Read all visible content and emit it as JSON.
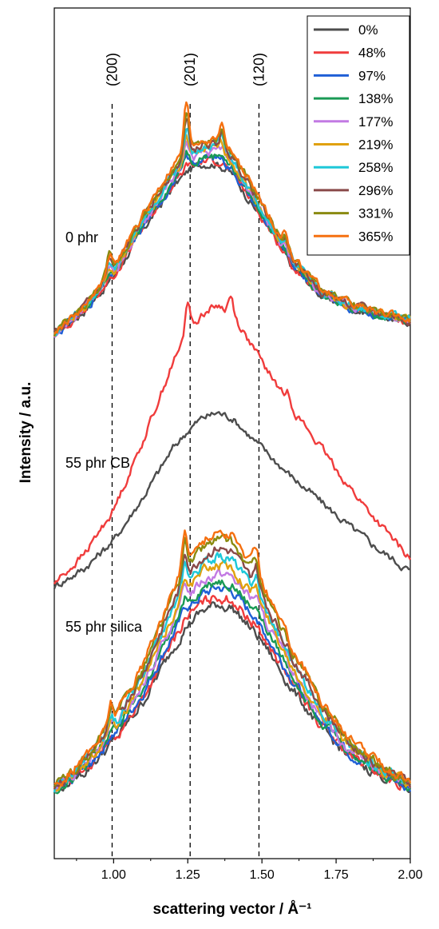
{
  "chart_data": {
    "type": "line",
    "xlabel": "scattering vector / Å⁻¹",
    "ylabel": "Intensity / a.u.",
    "xlim": [
      0.8,
      2.0
    ],
    "xticks": [
      {
        "value": 1.0,
        "label": "1.00"
      },
      {
        "value": 1.25,
        "label": "1.25"
      },
      {
        "value": 1.5,
        "label": "1.50"
      },
      {
        "value": 1.75,
        "label": "1.75"
      },
      {
        "value": 2.0,
        "label": "2.00"
      }
    ],
    "y_ticks_shown": false,
    "grid": false,
    "legend_position": "top-right",
    "reference_lines": [
      {
        "label": "(200)",
        "x": 0.995
      },
      {
        "label": "(201)",
        "x": 1.258
      },
      {
        "label": "(120)",
        "x": 1.49
      }
    ],
    "legend": [
      {
        "name": "0%",
        "color": "#4d4d4d"
      },
      {
        "name": "48%",
        "color": "#f03c3c"
      },
      {
        "name": "97%",
        "color": "#1f5fd6"
      },
      {
        "name": "138%",
        "color": "#1a9a55"
      },
      {
        "name": "177%",
        "color": "#c27ae3"
      },
      {
        "name": "219%",
        "color": "#e0a10e"
      },
      {
        "name": "258%",
        "color": "#1ec8d8"
      },
      {
        "name": "296%",
        "color": "#8a4a4a"
      },
      {
        "name": "331%",
        "color": "#8a8a10"
      },
      {
        "name": "365%",
        "color": "#f57010"
      }
    ],
    "panels": [
      {
        "label": "0 phr",
        "strains": [
          "0%",
          "48%",
          "97%",
          "138%",
          "177%",
          "219%",
          "258%",
          "296%",
          "331%",
          "365%"
        ],
        "profile": {
          "x": [
            0.8,
            0.9,
            1.0,
            1.1,
            1.2,
            1.25,
            1.3,
            1.35,
            1.4,
            1.5,
            1.6,
            1.7,
            1.8,
            1.9,
            2.0
          ],
          "y": [
            0.4,
            1.3,
            2.6,
            4.4,
            6.0,
            6.6,
            6.9,
            6.9,
            6.5,
            4.8,
            3.0,
            1.9,
            1.4,
            1.1,
            0.9
          ]
        },
        "growth_per_series": 0.08,
        "sharp_peaks": [
          {
            "x": 0.985,
            "height_max": 0.8
          },
          {
            "x": 1.245,
            "height_max": 1.7
          },
          {
            "x": 1.365,
            "height_max": 0.7
          },
          {
            "x": 1.58,
            "height_max": 0.5
          }
        ],
        "offset_y": 0
      },
      {
        "label": "55 phr CB",
        "strains": [
          "0%",
          "48%"
        ],
        "profile": {
          "x": [
            0.8,
            0.9,
            1.0,
            1.1,
            1.2,
            1.25,
            1.3,
            1.35,
            1.4,
            1.5,
            1.6,
            1.7,
            1.8,
            1.9,
            2.0
          ],
          "y": [
            0.2,
            0.9,
            2.0,
            3.7,
            5.6,
            6.3,
            6.8,
            7.0,
            6.8,
            5.6,
            4.5,
            3.5,
            2.5,
            1.6,
            0.8
          ]
        },
        "growth_per_series": 0.6,
        "sharp_peaks": [
          {
            "x": 1.25,
            "height_max": 1.3
          },
          {
            "x": 1.395,
            "height_max": 0.6
          },
          {
            "x": 1.59,
            "height_max": 0.4
          }
        ],
        "offset_y": 0
      },
      {
        "label": "55 phr silica",
        "strains": [
          "0%",
          "48%",
          "97%",
          "138%",
          "177%",
          "219%",
          "258%",
          "296%",
          "331%",
          "365%"
        ],
        "profile": {
          "x": [
            0.8,
            0.9,
            1.0,
            1.1,
            1.2,
            1.25,
            1.3,
            1.35,
            1.4,
            1.5,
            1.6,
            1.7,
            1.8,
            1.9,
            2.0
          ],
          "y": [
            0.5,
            1.1,
            2.0,
            3.2,
            4.8,
            5.5,
            5.9,
            6.1,
            6.0,
            5.0,
            3.6,
            2.4,
            1.5,
            1.0,
            0.6
          ]
        },
        "growth_per_series": 0.22,
        "sharp_peaks": [
          {
            "x": 0.99,
            "height_max": 0.6
          },
          {
            "x": 1.24,
            "height_max": 1.0
          },
          {
            "x": 1.48,
            "height_max": 0.8
          }
        ],
        "offset_y": 0
      }
    ]
  }
}
